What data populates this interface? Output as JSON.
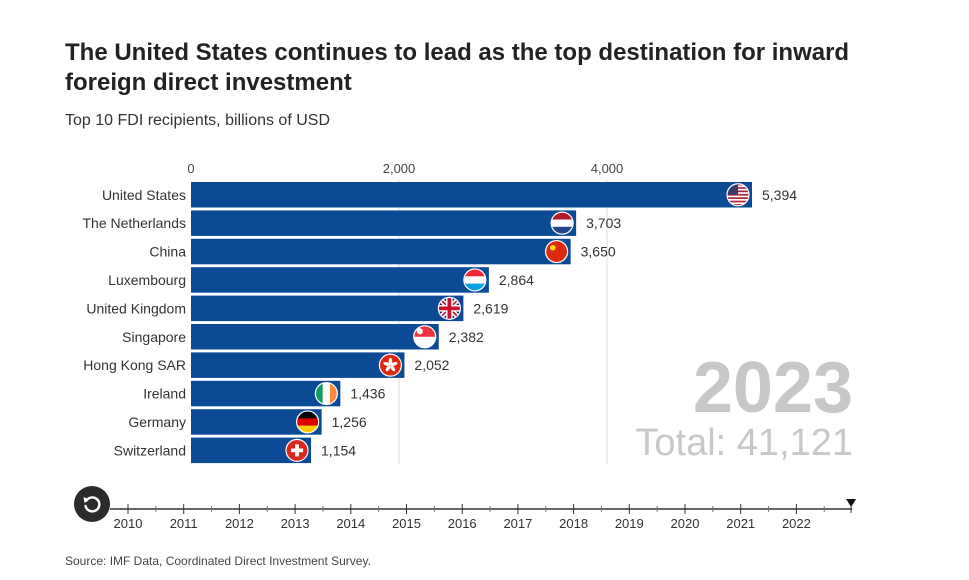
{
  "header": {
    "title": "The United States continues to lead as the top destination for inward foreign direct investment",
    "subtitle": "Top 10 FDI recipients, billions of USD"
  },
  "footer": {
    "source": "Source: IMF Data, Coordinated Direct Investment Survey."
  },
  "chart_data": {
    "type": "bar",
    "orientation": "horizontal",
    "title": "",
    "xlabel": "",
    "ylabel": "",
    "xlim": [
      0,
      5394
    ],
    "x_ticks": [
      "0",
      "2,000",
      "4,000"
    ],
    "x_tick_values": [
      0,
      2000,
      4000
    ],
    "grid": true,
    "bar_color": "#0b4a95",
    "categories": [
      "United States",
      "The Netherlands",
      "China",
      "Luxembourg",
      "United Kingdom",
      "Singapore",
      "Hong Kong SAR",
      "Ireland",
      "Germany",
      "Switzerland"
    ],
    "values": [
      5394,
      3703,
      3650,
      2864,
      2619,
      2382,
      2052,
      1436,
      1256,
      1154
    ],
    "value_labels": [
      "5,394",
      "3,703",
      "3,650",
      "2,864",
      "2,619",
      "2,382",
      "2,052",
      "1,436",
      "1,256",
      "1,154"
    ],
    "flag_icons": [
      "us-flag-icon",
      "netherlands-flag-icon",
      "china-flag-icon",
      "luxembourg-flag-icon",
      "uk-flag-icon",
      "singapore-flag-icon",
      "hong-kong-flag-icon",
      "ireland-flag-icon",
      "germany-flag-icon",
      "switzerland-flag-icon"
    ],
    "year_label": "2023",
    "total_label": "Total: 41,121"
  },
  "timeline": {
    "years": [
      "2010",
      "2011",
      "2012",
      "2013",
      "2014",
      "2015",
      "2016",
      "2017",
      "2018",
      "2019",
      "2020",
      "2021",
      "2022"
    ],
    "current_index": 13,
    "replay_icon": "replay-icon"
  },
  "colors": {
    "bar": "#0b4a95",
    "big_year": "#c8c8c8",
    "total": "#c8c8c8",
    "replay_button": "#2b2b2b"
  }
}
